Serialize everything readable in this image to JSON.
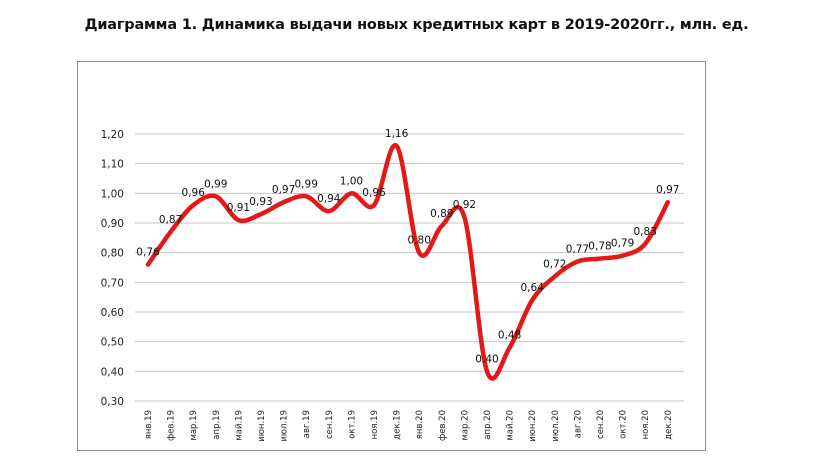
{
  "chart_data": {
    "type": "line",
    "title": "Диаграмма 1. Динамика выдачи новых кредитных карт в 2019-2020гг., млн. ед.",
    "xlabel": "",
    "ylabel": "",
    "ylim": [
      0.3,
      1.2
    ],
    "yticks": [
      "0,30",
      "0,40",
      "0,50",
      "0,60",
      "0,70",
      "0,80",
      "0,90",
      "1,00",
      "1,10",
      "1,20"
    ],
    "grid": true,
    "legend": "none",
    "categories": [
      "янв.19",
      "фев.19",
      "мар.19",
      "апр.19",
      "май.19",
      "июн.19",
      "июл.19",
      "авг.19",
      "сен.19",
      "окт.19",
      "ноя.19",
      "дек.19",
      "янв.20",
      "фев.20",
      "мар.20",
      "апр.20",
      "май.20",
      "июн.20",
      "июл.20",
      "авг.20",
      "сен.20",
      "окт.20",
      "ноя.20",
      "дек.20"
    ],
    "series": [
      {
        "values": [
          0.76,
          0.87,
          0.96,
          0.99,
          0.91,
          0.93,
          0.97,
          0.99,
          0.94,
          1.0,
          0.96,
          1.16,
          0.8,
          0.89,
          0.92,
          0.4,
          0.48,
          0.64,
          0.72,
          0.77,
          0.78,
          0.79,
          0.83,
          0.97
        ],
        "labels": [
          "0,76",
          "0,87",
          "0,96",
          "0,99",
          "0,91",
          "0,93",
          "0,97",
          "0,99",
          "0,94",
          "1,00",
          "0,96",
          "1,16",
          "0,80",
          "0,89",
          "0,92",
          "0,40",
          "0,48",
          "0,64",
          "0,72",
          "0,77",
          "0,78",
          "0,79",
          "0,83",
          "0,97"
        ],
        "color": "#e41818"
      }
    ]
  }
}
